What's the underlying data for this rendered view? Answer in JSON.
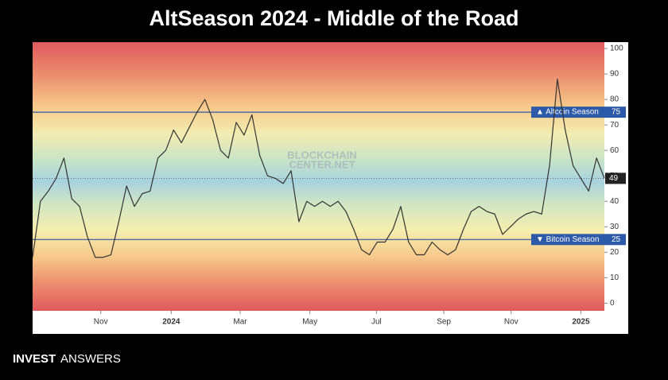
{
  "chart_data": {
    "type": "line",
    "title": "AltSeason 2024 - Middle of the Road",
    "values": [
      18,
      40,
      44,
      49,
      57,
      41,
      38,
      26,
      18,
      18,
      19,
      32,
      46,
      38,
      43,
      44,
      57,
      60,
      68,
      63,
      69,
      75,
      80,
      72,
      60,
      57,
      71,
      66,
      74,
      58,
      50,
      49,
      47,
      52,
      32,
      40,
      38,
      40,
      38,
      40,
      36,
      29,
      21,
      19,
      24,
      24,
      29,
      38,
      24,
      19,
      19,
      24,
      21,
      19,
      21,
      29,
      36,
      38,
      36,
      35,
      27,
      30,
      33,
      35,
      36,
      35,
      54,
      88,
      68,
      54,
      49,
      44,
      57,
      49
    ],
    "color": "#333333",
    "xlim": [
      0,
      73
    ],
    "xticks": [
      {
        "value": 8.7,
        "label": "Nov"
      },
      {
        "value": 17.7,
        "label": "2024"
      },
      {
        "value": 26.5,
        "label": "Mar"
      },
      {
        "value": 35.4,
        "label": "May"
      },
      {
        "value": 43.9,
        "label": "Jul"
      },
      {
        "value": 52.5,
        "label": "Sep"
      },
      {
        "value": 61.1,
        "label": "Nov"
      },
      {
        "value": 70,
        "label": "2025"
      }
    ],
    "ylim": [
      -3,
      102.5
    ],
    "yticks": [
      0,
      10,
      20,
      30,
      40,
      50,
      60,
      70,
      80,
      90,
      100
    ],
    "hlines": [
      {
        "label": "▲ Altcoin Season",
        "value": 75,
        "color": "#2c5aa8"
      },
      {
        "label": "▼ Bitcoin Season",
        "value": 25,
        "color": "#2c5aa8"
      }
    ],
    "watermark": [
      "BLOCKCHAIN",
      "CENTER.NET"
    ],
    "footer": [
      "INVEST",
      "ANSWERS"
    ]
  }
}
